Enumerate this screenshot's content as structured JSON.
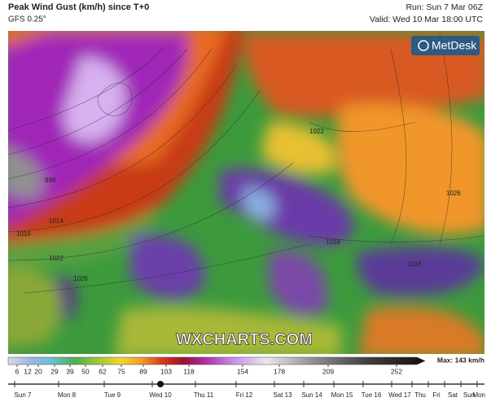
{
  "header": {
    "title": "Peak Wind Gust (km/h) since T+0",
    "model": "GFS 0.25°",
    "run": "Run: Sun 7 Mar 06Z",
    "valid": "Valid: Wed 10 Mar 18:00 UTC"
  },
  "map": {
    "logo": "MetDesk",
    "watermark": "WXCHARTS.COM",
    "isobar_labels": [
      "998",
      "1014",
      "1016",
      "1022",
      "1026",
      "1022",
      "1026",
      "1018",
      "1016"
    ]
  },
  "legend": {
    "ticks": [
      "6",
      "12",
      "20",
      "29",
      "39",
      "50",
      "62",
      "75",
      "89",
      "103",
      "118",
      "154",
      "178",
      "209",
      "252"
    ],
    "max_label": "Max: 143 km/h"
  },
  "timeline": {
    "days": [
      "Sun 7",
      "Mon 8",
      "Tue 9",
      "Wed 10",
      "Thu 11",
      "Fri 12",
      "Sat 13",
      "Sun 14",
      "Mon 15",
      "Tue 16",
      "Wed 17",
      "Thu",
      "Fri",
      "Sat",
      "Sun",
      "Mon"
    ]
  }
}
